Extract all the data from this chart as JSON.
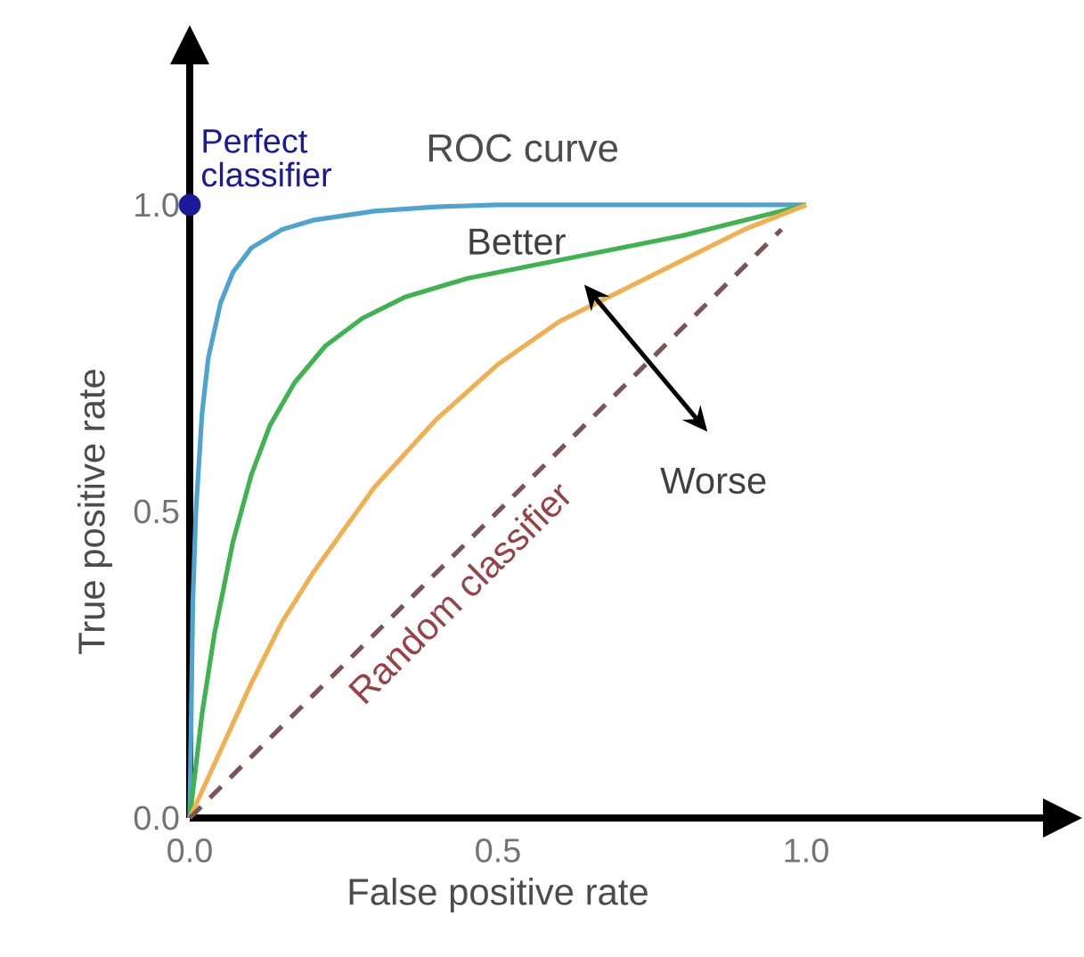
{
  "chart_data": {
    "type": "line",
    "title": "ROC curve",
    "xlabel": "False positive rate",
    "ylabel": "True positive rate",
    "xlim": [
      0,
      1.39
    ],
    "ylim": [
      0,
      1.235
    ],
    "xticks": [
      {
        "value": 0,
        "label": "0.0"
      },
      {
        "value": 0.5,
        "label": "0.5"
      },
      {
        "value": 1,
        "label": "1.0"
      }
    ],
    "yticks": [
      {
        "value": 0,
        "label": "0.0"
      },
      {
        "value": 0.5,
        "label": "0.5"
      },
      {
        "value": 1,
        "label": "1.0"
      }
    ],
    "marker": "none",
    "line_style": "solid",
    "series": [
      {
        "color": "#4fa3d1",
        "x": [
          0,
          0.005,
          0.01,
          0.02,
          0.03,
          0.05,
          0.07,
          0.1,
          0.15,
          0.2,
          0.3,
          0.4,
          0.5,
          0.7,
          1
        ],
        "values": [
          0,
          0.35,
          0.5,
          0.66,
          0.75,
          0.84,
          0.89,
          0.93,
          0.96,
          0.975,
          0.99,
          0.997,
          1,
          1,
          1
        ]
      },
      {
        "color": "#3fb34f",
        "x": [
          0,
          0.02,
          0.04,
          0.07,
          0.1,
          0.13,
          0.17,
          0.22,
          0.28,
          0.35,
          0.45,
          0.55,
          0.65,
          0.8,
          1
        ],
        "values": [
          0,
          0.17,
          0.3,
          0.45,
          0.56,
          0.64,
          0.71,
          0.77,
          0.815,
          0.85,
          0.88,
          0.9,
          0.92,
          0.95,
          1
        ]
      },
      {
        "color": "#f0b050",
        "x": [
          0,
          0.05,
          0.1,
          0.15,
          0.2,
          0.3,
          0.4,
          0.5,
          0.6,
          0.7,
          0.8,
          0.9,
          1
        ],
        "values": [
          0,
          0.11,
          0.22,
          0.32,
          0.4,
          0.54,
          0.65,
          0.74,
          0.81,
          0.86,
          0.91,
          0.96,
          1
        ]
      },
      {
        "name": "Random classifier",
        "type": "line",
        "line_style": "dashed",
        "color": "#7a5458",
        "x": [
          0,
          0.96
        ],
        "values": [
          0,
          0.96
        ]
      },
      {
        "name": "Perfect classifier",
        "type": "scatter",
        "color": "#1a1a9a",
        "x": [
          0
        ],
        "values": [
          1
        ]
      }
    ],
    "annotations": [
      "Better",
      "Worse"
    ]
  }
}
